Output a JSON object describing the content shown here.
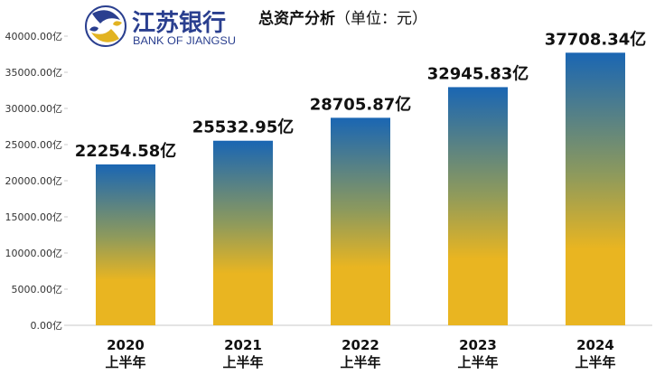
{
  "logo": {
    "name_cn": "江苏银行",
    "name_en": "BANK OF JIANGSU",
    "colors": {
      "blue": "#2a3f8f",
      "gold": "#e2b321"
    }
  },
  "chart_data": {
    "type": "bar",
    "title": "总资产分析",
    "unit_label": "（单位：元）",
    "categories": [
      [
        "2020",
        "上半年"
      ],
      [
        "2021",
        "上半年"
      ],
      [
        "2022",
        "上半年"
      ],
      [
        "2023",
        "上半年"
      ],
      [
        "2024",
        "上半年"
      ]
    ],
    "values": [
      22254.58,
      25532.95,
      28705.87,
      32945.83,
      37708.34
    ],
    "value_labels": [
      "22254.58亿",
      "25532.95亿",
      "28705.87亿",
      "32945.83亿",
      "37708.34亿"
    ],
    "yticks": [
      "0.00亿",
      "5000.00亿",
      "10000.00亿",
      "15000.00亿",
      "20000.00亿",
      "25000.00亿",
      "30000.00亿",
      "35000.00亿",
      "40000.00亿"
    ],
    "ylim": [
      0,
      40000
    ],
    "colors": {
      "bar_top": "#1a66b3",
      "bar_mid": "#8e9a5c",
      "bar_bottom": "#e9b521",
      "axis": "#c8c8c8"
    },
    "grid": false
  }
}
